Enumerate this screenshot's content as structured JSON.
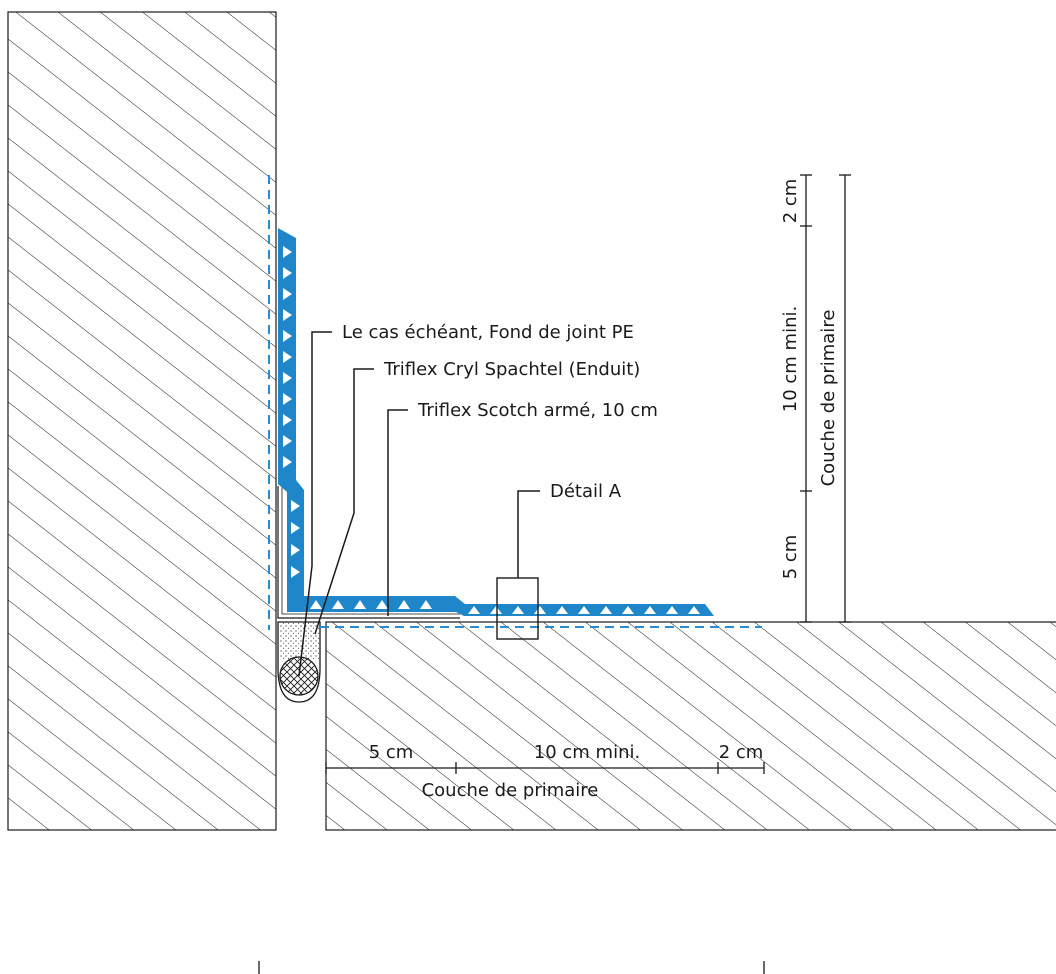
{
  "colors": {
    "membrane": "#1f87c9",
    "primer_dash": "#2a8bd0",
    "line": "#1a1a1a",
    "hatch": "#1a1a1a"
  },
  "labels": {
    "backer_rod": "Le cas échéant, Fond de joint PE",
    "spachtel": "Triflex Cryl Spachtel (Enduit)",
    "scotch": "Triflex Scotch armé, 10 cm",
    "detail": "Détail A"
  },
  "vertical_dims": {
    "top": "2 cm",
    "middle": "10 cm mini.",
    "bottom": "5 cm",
    "primer": "Couche de primaire"
  },
  "horizontal_dims": {
    "left": "5 cm",
    "middle": "10 cm mini.",
    "right": "2 cm",
    "primer": "Couche de primaire"
  }
}
